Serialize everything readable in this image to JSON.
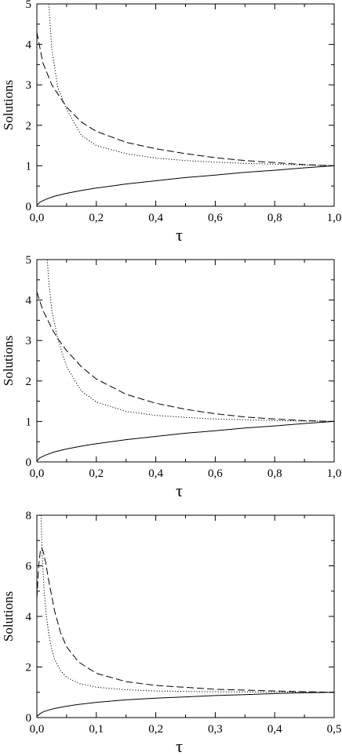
{
  "chart_data": [
    {
      "type": "line",
      "xlabel": "τ",
      "ylabel": "Solutions",
      "xlim": [
        0,
        1.0
      ],
      "ylim": [
        0,
        5
      ],
      "grid": false,
      "xticks": [
        0,
        0.2,
        0.4,
        0.6,
        0.8,
        1.0
      ],
      "xtick_labels": [
        "0,0",
        "0,2",
        "0,4",
        "0,6",
        "0,8",
        "1,0"
      ],
      "yticks": [
        0,
        1,
        2,
        3,
        4,
        5
      ],
      "ytick_labels": [
        "0",
        "1",
        "2",
        "3",
        "4",
        "5"
      ],
      "series": [
        {
          "style": "solid",
          "x": [
            0.001,
            0.01,
            0.03,
            0.06,
            0.1,
            0.15,
            0.2,
            0.3,
            0.4,
            0.5,
            0.6,
            0.7,
            0.8,
            0.9,
            1.0
          ],
          "y": [
            0.03,
            0.1,
            0.17,
            0.25,
            0.32,
            0.39,
            0.45,
            0.55,
            0.63,
            0.71,
            0.77,
            0.84,
            0.89,
            0.95,
            1.0
          ]
        },
        {
          "style": "dashed",
          "x": [
            0.0,
            0.02,
            0.05,
            0.1,
            0.15,
            0.2,
            0.3,
            0.4,
            0.5,
            0.6,
            0.7,
            0.8,
            0.9,
            1.0
          ],
          "y": [
            4.3,
            3.55,
            3.0,
            2.45,
            2.08,
            1.85,
            1.58,
            1.42,
            1.3,
            1.2,
            1.13,
            1.08,
            1.03,
            1.0
          ]
        },
        {
          "style": "dotted",
          "x": [
            0.04,
            0.05,
            0.07,
            0.1,
            0.15,
            0.2,
            0.3,
            0.4,
            0.5,
            0.6,
            0.7,
            0.8,
            0.9,
            1.0
          ],
          "y": [
            5.0,
            3.9,
            2.95,
            2.4,
            1.75,
            1.5,
            1.3,
            1.19,
            1.13,
            1.09,
            1.06,
            1.04,
            1.02,
            1.0
          ]
        }
      ]
    },
    {
      "type": "line",
      "xlabel": "τ",
      "ylabel": "Solutions",
      "xlim": [
        0,
        1.0
      ],
      "ylim": [
        0,
        5
      ],
      "grid": false,
      "xticks": [
        0,
        0.2,
        0.4,
        0.6,
        0.8,
        1.0
      ],
      "xtick_labels": [
        "0,0",
        "0,2",
        "0,4",
        "0,6",
        "0,8",
        "1,0"
      ],
      "yticks": [
        0,
        1,
        2,
        3,
        4,
        5
      ],
      "ytick_labels": [
        "0",
        "1",
        "2",
        "3",
        "4",
        "5"
      ],
      "series": [
        {
          "style": "solid",
          "x": [
            0.001,
            0.01,
            0.03,
            0.06,
            0.1,
            0.15,
            0.2,
            0.3,
            0.4,
            0.5,
            0.6,
            0.7,
            0.8,
            0.9,
            1.0
          ],
          "y": [
            0.03,
            0.1,
            0.17,
            0.25,
            0.32,
            0.39,
            0.45,
            0.55,
            0.63,
            0.71,
            0.77,
            0.84,
            0.89,
            0.95,
            1.0
          ]
        },
        {
          "style": "dashed",
          "x": [
            0.0,
            0.02,
            0.05,
            0.07,
            0.1,
            0.15,
            0.2,
            0.3,
            0.4,
            0.5,
            0.6,
            0.7,
            0.8,
            0.9,
            1.0
          ],
          "y": [
            4.2,
            3.75,
            3.3,
            3.05,
            2.75,
            2.35,
            2.05,
            1.67,
            1.45,
            1.3,
            1.19,
            1.11,
            1.06,
            1.02,
            1.0
          ]
        },
        {
          "style": "dotted",
          "x": [
            0.035,
            0.04,
            0.05,
            0.07,
            0.1,
            0.15,
            0.2,
            0.3,
            0.4,
            0.5,
            0.6,
            0.7,
            0.8,
            0.9,
            1.0
          ],
          "y": [
            5.0,
            4.45,
            3.75,
            3.05,
            2.35,
            1.75,
            1.48,
            1.25,
            1.15,
            1.1,
            1.06,
            1.04,
            1.02,
            1.01,
            1.0
          ]
        }
      ]
    },
    {
      "type": "line",
      "xlabel": "τ",
      "ylabel": "Solutions",
      "xlim": [
        0,
        0.5
      ],
      "ylim": [
        0,
        8
      ],
      "grid": false,
      "xticks": [
        0,
        0.1,
        0.2,
        0.3,
        0.4,
        0.5
      ],
      "xtick_labels": [
        "0,0",
        "0,1",
        "0,2",
        "0,3",
        "0,4",
        "0,5"
      ],
      "yticks": [
        0,
        2,
        4,
        6,
        8
      ],
      "ytick_labels": [
        "0",
        "2",
        "4",
        "6",
        "8"
      ],
      "series": [
        {
          "style": "solid",
          "x": [
            0.0005,
            0.005,
            0.01,
            0.02,
            0.03,
            0.05,
            0.07,
            0.1,
            0.15,
            0.2,
            0.25,
            0.3,
            0.35,
            0.4,
            0.45,
            0.5
          ],
          "y": [
            0.05,
            0.15,
            0.22,
            0.3,
            0.36,
            0.45,
            0.52,
            0.6,
            0.7,
            0.77,
            0.82,
            0.87,
            0.91,
            0.95,
            0.98,
            1.0
          ]
        },
        {
          "style": "dashed",
          "x": [
            0.0,
            0.003,
            0.006,
            0.008,
            0.011,
            0.015,
            0.02,
            0.03,
            0.04,
            0.05,
            0.07,
            0.1,
            0.15,
            0.2,
            0.3,
            0.4,
            0.5
          ],
          "y": [
            4.7,
            6.0,
            6.6,
            6.7,
            6.55,
            6.1,
            5.4,
            4.2,
            3.35,
            2.8,
            2.2,
            1.75,
            1.42,
            1.27,
            1.12,
            1.05,
            1.0
          ]
        },
        {
          "style": "dotted",
          "x": [
            0.007,
            0.009,
            0.012,
            0.015,
            0.02,
            0.025,
            0.03,
            0.04,
            0.05,
            0.07,
            0.1,
            0.15,
            0.2,
            0.3,
            0.4,
            0.5
          ],
          "y": [
            8.0,
            6.5,
            5.1,
            4.2,
            3.3,
            2.7,
            2.3,
            1.85,
            1.6,
            1.35,
            1.2,
            1.1,
            1.05,
            1.02,
            1.01,
            1.0
          ]
        }
      ]
    }
  ]
}
